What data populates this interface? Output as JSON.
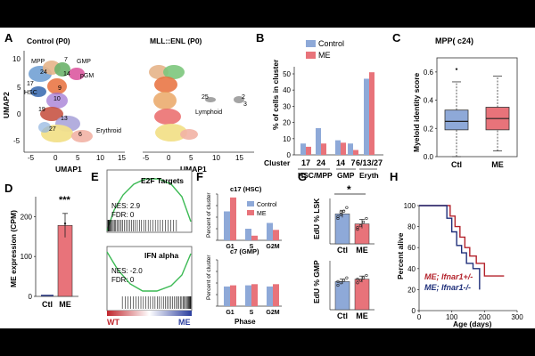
{
  "panelA": {
    "letter": "A",
    "left_title": "Control (P0)",
    "right_title": "MLL::ENL (P0)",
    "xlabel": "UMAP1",
    "ylabel": "UMAP2",
    "xticks": [
      "-5",
      "0",
      "5",
      "10",
      "15"
    ],
    "yticks": [
      "10",
      "5",
      "0",
      "-5"
    ],
    "cluster_labels": [
      "MPP",
      "7",
      "GMP",
      "24",
      "14",
      "pGM",
      "17",
      "HSC",
      "9",
      "10",
      "19",
      "13",
      "27",
      "6",
      "Erythroid"
    ],
    "right_labels": [
      "Lymphoid",
      "25",
      "2",
      "3"
    ]
  },
  "panelB": {
    "letter": "B",
    "ylabel": "% of cells in cluster",
    "yticks": [
      "0",
      "10",
      "20",
      "30",
      "40",
      "50"
    ],
    "legend": [
      "Control",
      "ME"
    ],
    "cluster_row_label": "Cluster",
    "cluster_ids": [
      "17",
      "24",
      "14",
      "7",
      "6/13/27"
    ],
    "groups": [
      "HSC/MPP",
      "GMP",
      "Eryth"
    ]
  },
  "panelC": {
    "letter": "C",
    "title": "MPP( c24)",
    "ylabel": "Myeloid identity score",
    "yticks": [
      "0.0",
      "0.2",
      "0.4",
      "0.6"
    ],
    "categories": [
      "Ctl",
      "ME"
    ]
  },
  "panelD": {
    "letter": "D",
    "ylabel": "ME expression (CPM)",
    "yticks": [
      "0",
      "100",
      "200"
    ],
    "categories": [
      "Ctl",
      "ME"
    ],
    "signif": "***"
  },
  "panelE": {
    "letter": "E",
    "top_title": "E2F Targets",
    "top_nes": "NES: 2.9",
    "top_fdr": "FDR: 0",
    "bottom_title": "IFN alpha",
    "bottom_nes": "NES: -2.0",
    "bottom_fdr": "FDR: 0",
    "left_label": "WT",
    "right_label": "ME"
  },
  "panelF": {
    "letter": "F",
    "top_title": "c17 (HSC)",
    "bottom_title": "c7 (GMP)",
    "ylabel_top": "Percent of cluster",
    "ylabel_bottom": "Percent of cluster",
    "legend": [
      "Control",
      "ME"
    ],
    "phases": [
      "G1",
      "S",
      "G2M"
    ],
    "xlabel": "Phase"
  },
  "panelG": {
    "letter": "G",
    "top_ylabel": "EdU % LSK",
    "bottom_ylabel": "EdU % GMP",
    "categories": [
      "Ctl",
      "ME"
    ],
    "signif": "*"
  },
  "panelH": {
    "letter": "H",
    "ylabel": "Percent alive",
    "xlabel": "Age (days)",
    "yticks": [
      "0",
      "20",
      "40",
      "60",
      "80",
      "100"
    ],
    "xticks": [
      "0",
      "100",
      "200",
      "300"
    ],
    "legend": [
      "ME; Ifnar1+/-",
      "ME; Ifnar1-/-"
    ]
  },
  "colors": {
    "control": "#8ea9d8",
    "me": "#e8737a",
    "control_dark": "#1f2f7a",
    "me_dark": "#b3222b"
  },
  "chart_data": [
    {
      "type": "bar",
      "panel": "B",
      "categories": [
        "17",
        "24",
        "14",
        "7",
        "6/13/27"
      ],
      "series": [
        {
          "name": "Control",
          "values": [
            7,
            16.5,
            9,
            7,
            47
          ]
        },
        {
          "name": "ME",
          "values": [
            5,
            7,
            7.5,
            3,
            51
          ]
        }
      ],
      "ylabel": "% of cells in cluster",
      "ylim": [
        0,
        50
      ]
    },
    {
      "type": "box",
      "panel": "C",
      "title": "MPP( c24)",
      "categories": [
        "Ctl",
        "ME"
      ],
      "boxes": [
        {
          "name": "Ctl",
          "whisker_low": 0.0,
          "q1": 0.19,
          "median": 0.25,
          "q3": 0.33,
          "whisker_high": 0.53,
          "outlier": 0.62
        },
        {
          "name": "ME",
          "whisker_low": 0.04,
          "q1": 0.19,
          "median": 0.27,
          "q3": 0.35,
          "whisker_high": 0.57
        }
      ],
      "ylim": [
        0,
        0.7
      ]
    },
    {
      "type": "bar",
      "panel": "D",
      "categories": [
        "Ctl",
        "ME"
      ],
      "values": [
        0,
        178
      ],
      "errors": [
        0,
        30
      ],
      "ylabel": "ME expression (CPM)",
      "ylim": [
        0,
        250
      ]
    },
    {
      "type": "bar",
      "panel": "F-top",
      "title": "c17 (HSC)",
      "categories": [
        "G1",
        "S",
        "G2M"
      ],
      "series": [
        {
          "name": "Control",
          "values": [
            50,
            20,
            30
          ]
        },
        {
          "name": "ME",
          "values": [
            74,
            8,
            18
          ]
        }
      ],
      "ylim": [
        0,
        80
      ]
    },
    {
      "type": "bar",
      "panel": "F-bottom",
      "title": "c7 (GMP)",
      "categories": [
        "G1",
        "S",
        "G2M"
      ],
      "series": [
        {
          "name": "Control",
          "values": [
            34,
            36,
            34
          ]
        },
        {
          "name": "ME",
          "values": [
            36,
            38,
            38
          ]
        }
      ],
      "ylim": [
        0,
        80
      ]
    },
    {
      "type": "bar",
      "panel": "G-top",
      "ylabel": "EdU % LSK",
      "categories": [
        "Ctl",
        "ME"
      ],
      "values": [
        33,
        22
      ],
      "errors": [
        4,
        5
      ],
      "ylim": [
        0,
        50
      ]
    },
    {
      "type": "bar",
      "panel": "G-bottom",
      "ylabel": "EdU % GMP",
      "categories": [
        "Ctl",
        "ME"
      ],
      "values": [
        46,
        50
      ],
      "errors": [
        4,
        5
      ],
      "ylim": [
        0,
        80
      ]
    },
    {
      "type": "line",
      "panel": "H",
      "xlabel": "Age (days)",
      "ylabel": "Percent alive",
      "series": [
        {
          "name": "ME; Ifnar1+/-",
          "x": [
            0,
            80,
            95,
            110,
            125,
            140,
            155,
            175,
            200,
            260
          ],
          "y": [
            100,
            100,
            90,
            80,
            70,
            60,
            52,
            45,
            33,
            33
          ]
        },
        {
          "name": "ME; Ifnar1-/-",
          "x": [
            0,
            70,
            85,
            100,
            115,
            130,
            145,
            165,
            185
          ],
          "y": [
            100,
            100,
            88,
            75,
            62,
            55,
            45,
            40,
            20
          ]
        }
      ],
      "xlim": [
        0,
        300
      ],
      "ylim": [
        0,
        100
      ]
    }
  ]
}
